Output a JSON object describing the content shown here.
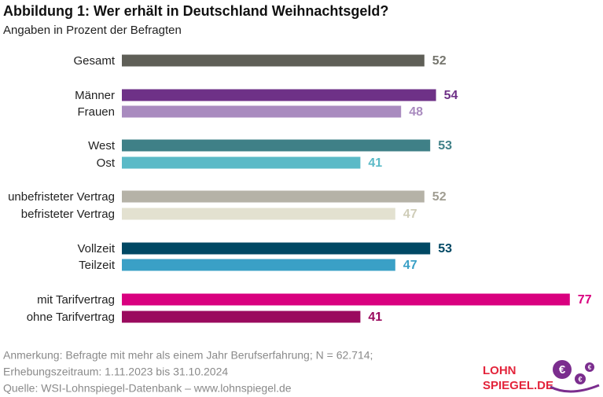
{
  "chart_data": {
    "type": "bar",
    "title": "Abbildung 1:  Wer erhält in Deutschland Weihnachtsgeld?",
    "subtitle": "Angaben in Prozent der Befragten",
    "categories": [
      "Gesamt",
      "Männer",
      "Frauen",
      "West",
      "Ost",
      "unbefristeter Vertrag",
      "befristeter Vertrag",
      "Vollzeit",
      "Teilzeit",
      "mit Tarifvertrag",
      "ohne Tarifvertrag"
    ],
    "values": [
      52,
      54,
      48,
      53,
      41,
      52,
      47,
      53,
      47,
      77,
      41
    ],
    "colors": [
      "#5f5f57",
      "#6e3187",
      "#a98bbf",
      "#3f8087",
      "#5bbac7",
      "#b5b2a7",
      "#e3e1d0",
      "#004864",
      "#3aa0c6",
      "#d9007f",
      "#9a0a5e"
    ],
    "label_colors": [
      "#76766e",
      "#6e3187",
      "#a98bbf",
      "#3f8087",
      "#5bbac7",
      "#a09d92",
      "#cfcdb8",
      "#004864",
      "#3aa0c6",
      "#d9007f",
      "#9a0a5e"
    ]
  },
  "notes": [
    "Anmerkung: Befragte mit mehr als einem Jahr Berufserfahrung; N = 62.714;",
    "Erhebungszeitraum: 1.11.2023 bis 31.10.2024",
    "Quelle:  WSI-Lohnspiegel-Datenbank – www.lohnspiegel.de"
  ],
  "logo": {
    "line1": "LOHN",
    "line2": "SPIEGEL.DE",
    "symbol": "€"
  }
}
